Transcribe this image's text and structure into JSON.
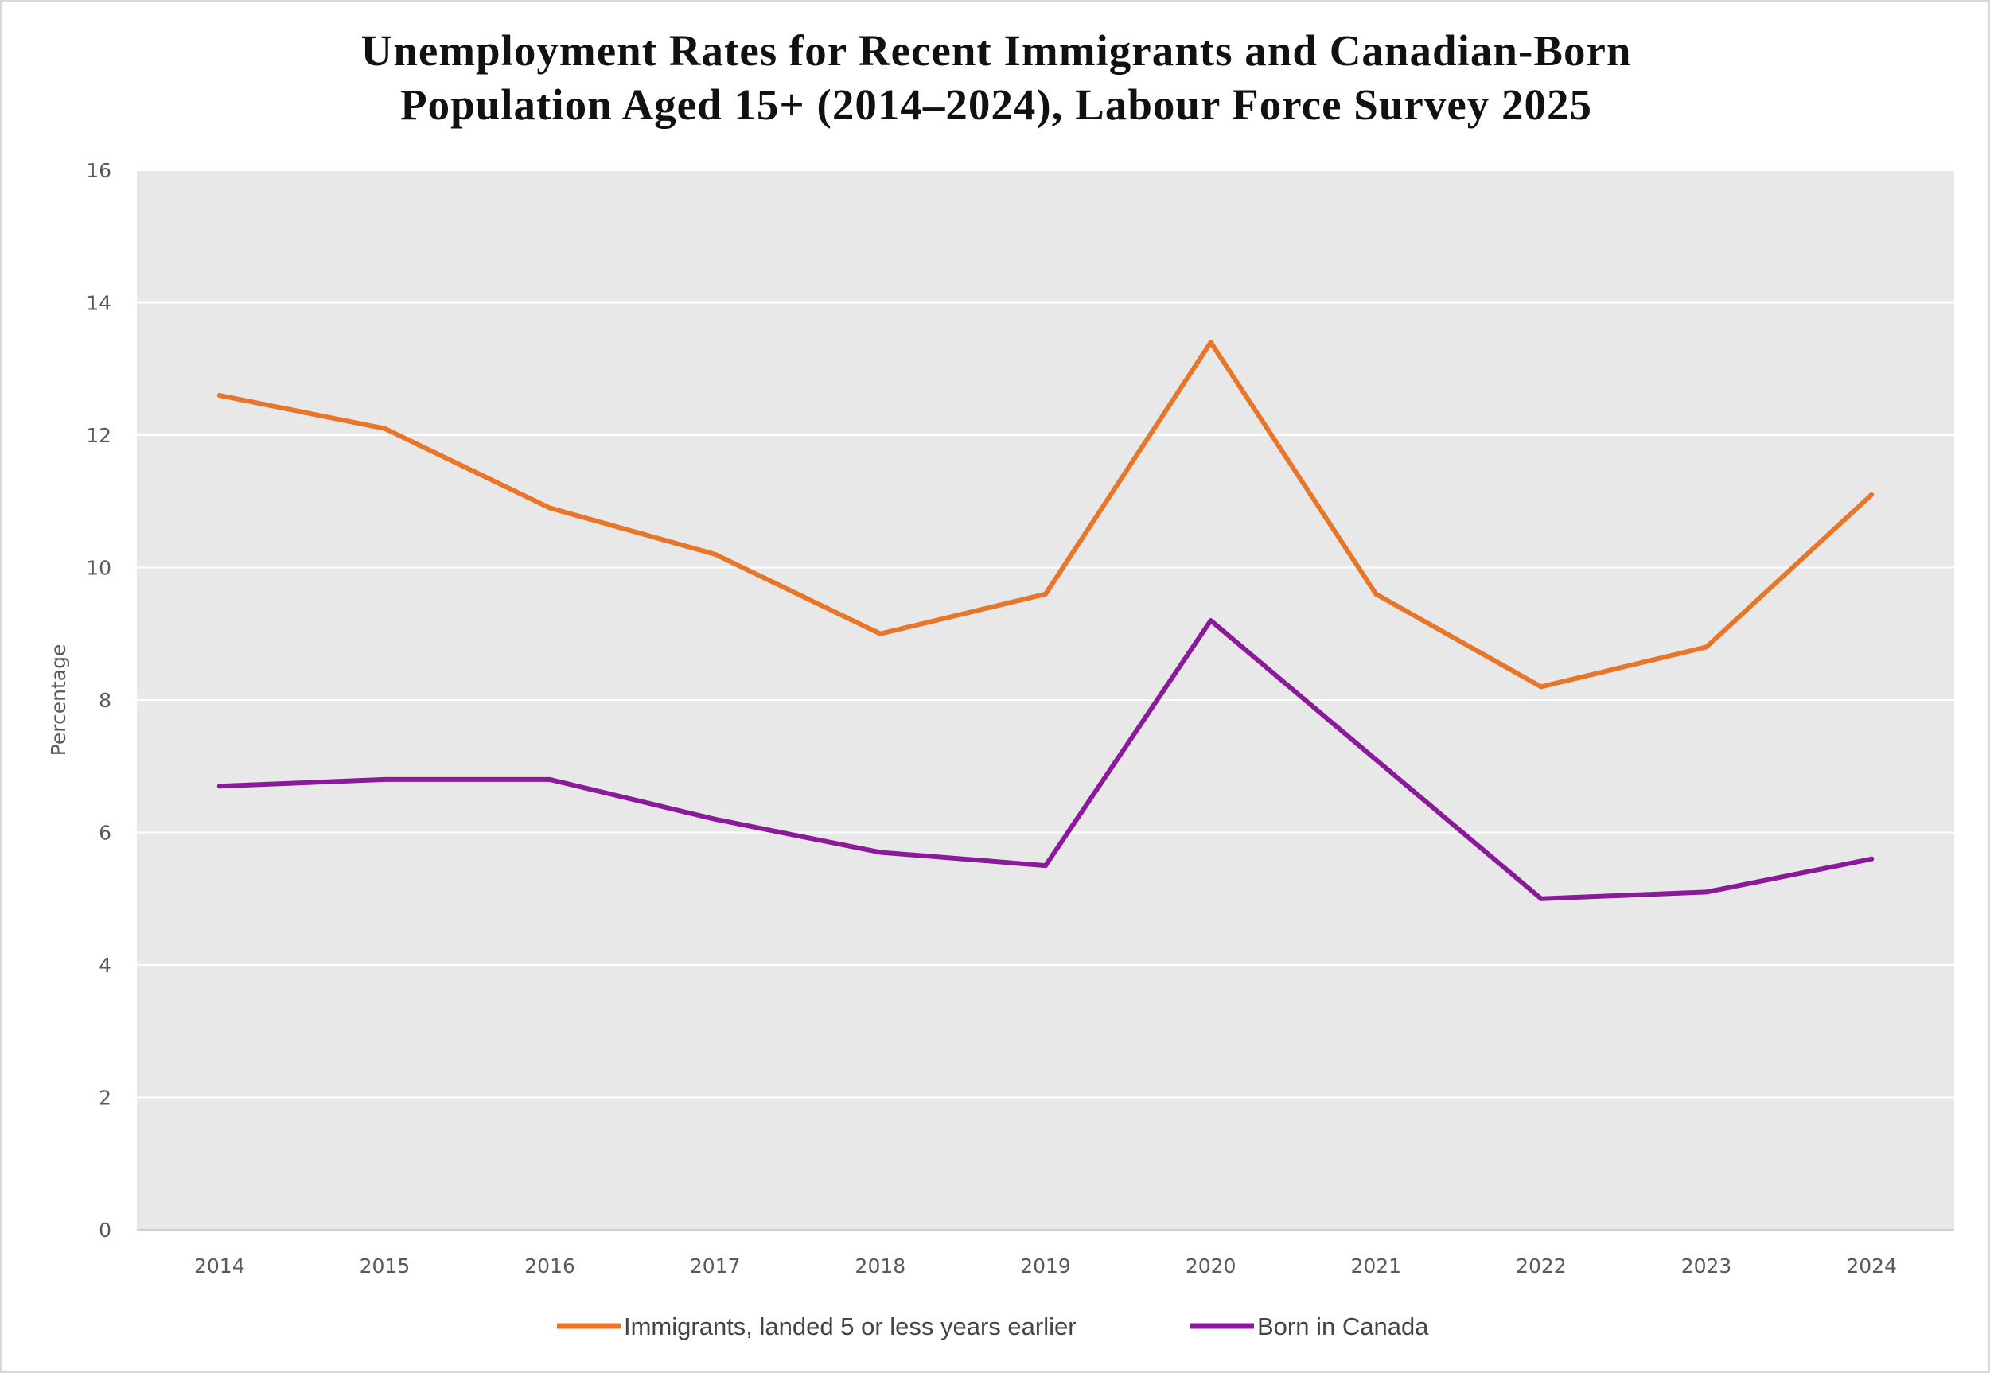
{
  "chart_data": {
    "type": "line",
    "title": "Unemployment Rates for Recent Immigrants and Canadian-Born",
    "title_line2": "Population Aged 15+ (2014–2024), Labour Force Survey 2025",
    "xlabel": "",
    "ylabel": "Percentage",
    "ylim": [
      0,
      16
    ],
    "yticks": [
      0,
      2,
      4,
      6,
      8,
      10,
      12,
      14,
      16
    ],
    "categories": [
      "2014",
      "2015",
      "2016",
      "2017",
      "2018",
      "2019",
      "2020",
      "2021",
      "2022",
      "2023",
      "2024"
    ],
    "grid": true,
    "legend_position": "bottom",
    "background": "#E8E8E8",
    "series": [
      {
        "name": "Immigrants, landed 5 or less years earlier",
        "color": "#E8762A",
        "values": [
          12.6,
          12.1,
          10.9,
          10.2,
          9.0,
          9.6,
          13.4,
          9.6,
          8.2,
          8.8,
          11.1
        ]
      },
      {
        "name": "Born in Canada",
        "color": "#8B1A9B",
        "values": [
          6.7,
          6.8,
          6.8,
          6.2,
          5.7,
          5.5,
          9.2,
          7.1,
          5.0,
          5.1,
          5.6
        ]
      }
    ]
  }
}
